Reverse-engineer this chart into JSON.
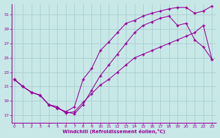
{
  "xlabel": "Windchill (Refroidissement éolien,°C)",
  "bg_color": "#c8e8e8",
  "grid_color": "#aacccc",
  "line_color": "#990099",
  "x_ticks": [
    0,
    1,
    2,
    3,
    4,
    5,
    6,
    7,
    8,
    9,
    10,
    11,
    12,
    13,
    14,
    15,
    16,
    17,
    18,
    19,
    20,
    21,
    22,
    23
  ],
  "y_ticks": [
    17,
    19,
    21,
    23,
    25,
    27,
    29,
    31
  ],
  "ylim": [
    16.0,
    32.5
  ],
  "xlim": [
    -0.3,
    23.5
  ],
  "line_top_x": [
    0,
    1,
    2,
    3,
    4,
    5,
    6,
    7,
    8,
    9,
    10,
    11,
    12,
    13,
    14,
    15,
    16,
    17,
    18,
    19,
    20,
    21,
    22,
    23
  ],
  "line_top_y": [
    22,
    21,
    20.2,
    19.8,
    18.5,
    18,
    17.5,
    18.2,
    22,
    23.5,
    26,
    27.2,
    28.5,
    29.8,
    30.2,
    30.8,
    31.2,
    31.5,
    31.8,
    32,
    32,
    31.2,
    31.5,
    32.2
  ],
  "line_mid_x": [
    0,
    1,
    2,
    3,
    4,
    5,
    6,
    7,
    8,
    9,
    10,
    11,
    12,
    13,
    14,
    15,
    16,
    17,
    18,
    19,
    20,
    21,
    22,
    23
  ],
  "line_mid_y": [
    22,
    21,
    20.2,
    19.8,
    18.5,
    18,
    17.5,
    17.2,
    18.5,
    20.5,
    22.5,
    24,
    25.5,
    27,
    28.5,
    29.5,
    30,
    30.5,
    30.8,
    29.5,
    29.8,
    27.5,
    26.5,
    24.8
  ],
  "line_bot_x": [
    0,
    1,
    2,
    3,
    4,
    5,
    6,
    7,
    8,
    9,
    10,
    11,
    12,
    13,
    14,
    15,
    16,
    17,
    18,
    19,
    20,
    21,
    22,
    23
  ],
  "line_bot_y": [
    22,
    21,
    20.2,
    19.8,
    18.5,
    18.2,
    17.3,
    17.5,
    18.8,
    20,
    21.2,
    22,
    23,
    24,
    25,
    25.5,
    26,
    26.5,
    27,
    27.5,
    28,
    28.5,
    29.5,
    24.8
  ]
}
